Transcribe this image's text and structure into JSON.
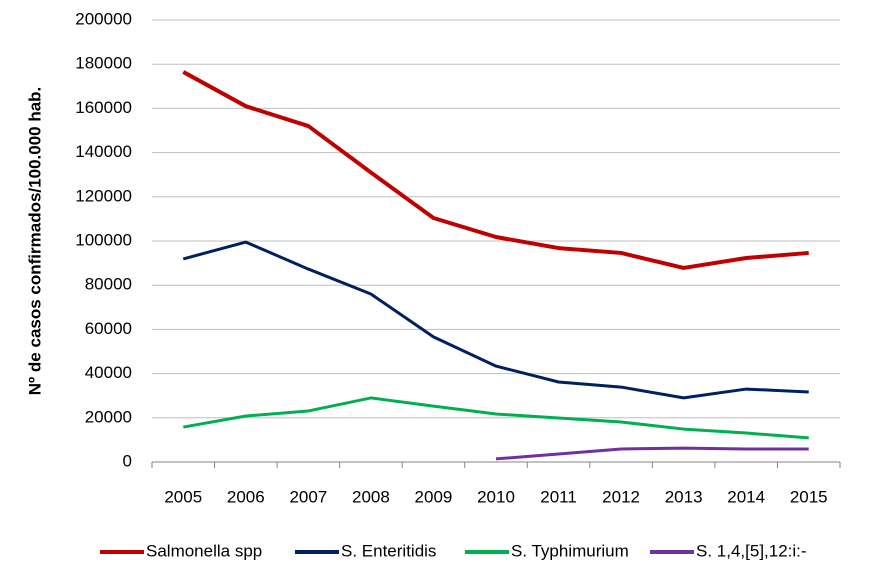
{
  "chart_data": {
    "type": "line",
    "y_label": "Nº de casos confirmados/100.000 hab.",
    "categories": [
      "2005",
      "2006",
      "2007",
      "2008",
      "2009",
      "2010",
      "2011",
      "2012",
      "2013",
      "2014",
      "2015"
    ],
    "series": [
      {
        "name": "Salmonella spp",
        "color": "#c00000",
        "values": [
          176500,
          161000,
          152000,
          131000,
          110400,
          101800,
          96800,
          94600,
          87800,
          92300,
          94600
        ]
      },
      {
        "name": "S. Enteritidis",
        "color": "#002060",
        "values": [
          91900,
          99500,
          87300,
          76000,
          56600,
          43400,
          36200,
          33900,
          29000,
          33000,
          31700
        ]
      },
      {
        "name": "S. Typhimurium",
        "color": "#00b050",
        "values": [
          15800,
          20800,
          23100,
          29000,
          25300,
          21700,
          19900,
          18100,
          14900,
          13100,
          10900
        ]
      },
      {
        "name": "S. 1,4,[5],12:i:-",
        "color": "#7030a0",
        "values": [
          null,
          null,
          null,
          null,
          null,
          1400,
          3600,
          5900,
          6300,
          5900,
          5900
        ]
      }
    ],
    "ylim": [
      0,
      200000
    ],
    "yticks": [
      0,
      20000,
      40000,
      60000,
      80000,
      100000,
      120000,
      140000,
      160000,
      180000,
      200000
    ],
    "grid": true
  }
}
